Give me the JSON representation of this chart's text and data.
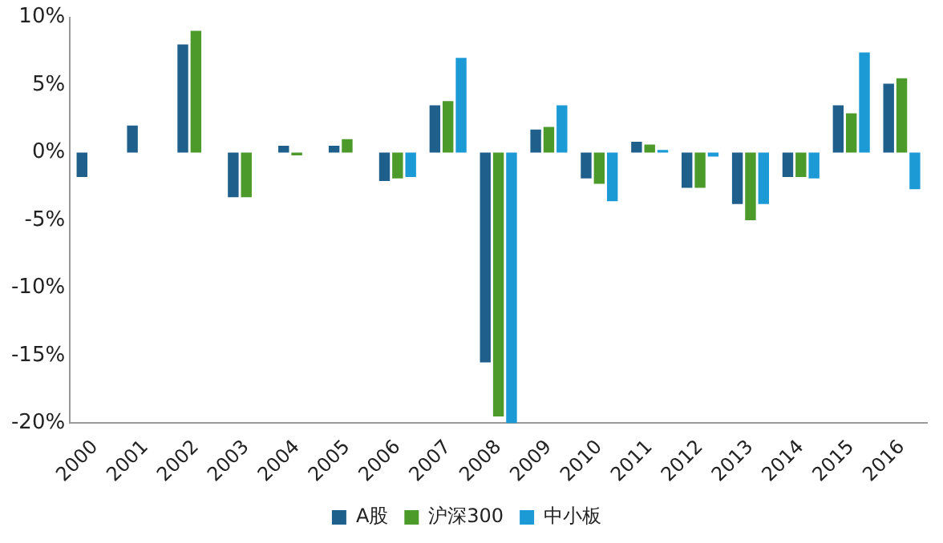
{
  "chart_data": {
    "type": "bar",
    "categories": [
      "2000",
      "2001",
      "2002",
      "2003",
      "2004",
      "2005",
      "2006",
      "2007",
      "2008",
      "2009",
      "2010",
      "2011",
      "2012",
      "2013",
      "2014",
      "2015",
      "2016"
    ],
    "series": [
      {
        "name": "A股",
        "color": "#1f5f8b",
        "values": [
          -1.8,
          2.0,
          8.0,
          -3.3,
          0.5,
          0.5,
          -2.1,
          3.5,
          -15.5,
          1.7,
          -1.9,
          0.8,
          -2.6,
          -3.8,
          -1.8,
          3.5,
          5.1
        ]
      },
      {
        "name": "沪深300",
        "color": "#4c9a2a",
        "values": [
          null,
          null,
          9.0,
          -3.3,
          -0.2,
          1.0,
          -1.9,
          3.8,
          -19.5,
          1.9,
          -2.3,
          0.6,
          -2.6,
          -5.0,
          -1.8,
          2.9,
          5.5
        ]
      },
      {
        "name": "中小板",
        "color": "#1b9ad6",
        "values": [
          null,
          null,
          null,
          null,
          null,
          null,
          -1.8,
          7.0,
          -20.0,
          3.5,
          -3.6,
          0.2,
          -0.3,
          -3.8,
          -1.9,
          7.4,
          -2.7
        ]
      }
    ],
    "ylim": [
      -20,
      10
    ],
    "yticks": [
      {
        "value": -20,
        "label": "-20%"
      },
      {
        "value": -15,
        "label": "-15%"
      },
      {
        "value": -10,
        "label": "-10%"
      },
      {
        "value": -5,
        "label": "-5%"
      },
      {
        "value": 0,
        "label": "0%"
      },
      {
        "value": 5,
        "label": "5%"
      },
      {
        "value": 10,
        "label": "10%"
      }
    ],
    "grid": false,
    "legend": "bottom"
  }
}
